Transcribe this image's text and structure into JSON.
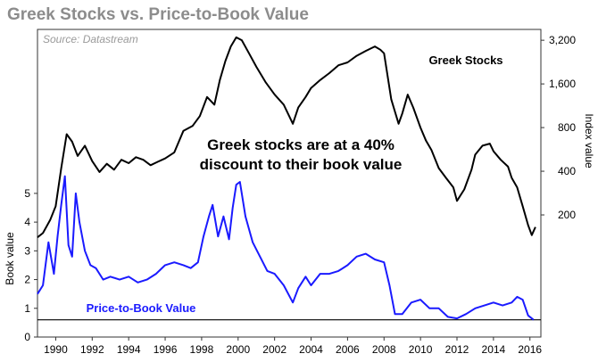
{
  "chart_data": {
    "type": "line",
    "title": "Greek Stocks vs. Price-to-Book Value",
    "source": "Source: Datastream",
    "annotation": [
      "Greek stocks are at a 40%",
      "discount to their book value"
    ],
    "x_ticks": [
      "1990",
      "1992",
      "1994",
      "1996",
      "1998",
      "2000",
      "2002",
      "2004",
      "2006",
      "2008",
      "2010",
      "2012",
      "2014",
      "2016"
    ],
    "xlim": [
      1989,
      2016.6
    ],
    "left_axis": {
      "title": "Book value",
      "ticks": [
        "0",
        "1",
        "2",
        "3",
        "4",
        "5"
      ],
      "range": [
        0,
        6.3
      ]
    },
    "right_axis": {
      "title": "Index value",
      "ticks": [
        "200",
        "400",
        "800",
        "1,600",
        "3,200"
      ],
      "scale": "log",
      "range": [
        100,
        3800
      ]
    },
    "reference_line": {
      "axis": "left",
      "value": 0.6,
      "color": "#000000"
    },
    "series": [
      {
        "name": "Greek Stocks",
        "axis": "right",
        "color": "#000000",
        "x": [
          1989.0,
          1989.3,
          1989.7,
          1990.0,
          1990.3,
          1990.6,
          1990.9,
          1991.2,
          1991.6,
          1992.0,
          1992.4,
          1992.8,
          1993.2,
          1993.6,
          1994.0,
          1994.4,
          1994.8,
          1995.2,
          1995.6,
          1996.0,
          1996.5,
          1997.0,
          1997.5,
          1997.9,
          1998.3,
          1998.7,
          1999.0,
          1999.3,
          1999.6,
          1999.9,
          2000.2,
          2000.6,
          2001.0,
          2001.5,
          2002.0,
          2002.5,
          2003.0,
          2003.3,
          2003.7,
          2004.0,
          2004.5,
          2005.0,
          2005.5,
          2006.0,
          2006.5,
          2007.0,
          2007.5,
          2007.8,
          2008.0,
          2008.4,
          2008.8,
          2009.0,
          2009.3,
          2009.6,
          2010.0,
          2010.3,
          2010.6,
          2011.0,
          2011.4,
          2011.8,
          2012.0,
          2012.4,
          2012.8,
          2013.0,
          2013.4,
          2013.8,
          2014.0,
          2014.4,
          2014.8,
          2015.0,
          2015.3,
          2015.6,
          2015.9,
          2016.1,
          2016.3
        ],
        "y": [
          140,
          150,
          185,
          230,
          420,
          720,
          640,
          510,
          600,
          470,
          395,
          450,
          410,
          480,
          455,
          500,
          480,
          440,
          465,
          490,
          540,
          760,
          820,
          960,
          1300,
          1150,
          1700,
          2300,
          2900,
          3350,
          3200,
          2600,
          2100,
          1650,
          1350,
          1150,
          850,
          1100,
          1300,
          1500,
          1700,
          1900,
          2150,
          2250,
          2500,
          2700,
          2900,
          2750,
          2600,
          1250,
          850,
          1000,
          1350,
          1100,
          800,
          650,
          560,
          420,
          360,
          310,
          250,
          300,
          410,
          520,
          600,
          620,
          550,
          480,
          430,
          360,
          310,
          230,
          170,
          145,
          165
        ]
      },
      {
        "name": "Price-to-Book Value",
        "axis": "left",
        "color": "#1a1aff",
        "x": [
          1989.0,
          1989.3,
          1989.6,
          1989.9,
          1990.1,
          1990.3,
          1990.5,
          1990.7,
          1990.9,
          1991.1,
          1991.3,
          1991.6,
          1991.9,
          1992.2,
          1992.6,
          1993.0,
          1993.5,
          1994.0,
          1994.5,
          1995.0,
          1995.5,
          1996.0,
          1996.5,
          1997.0,
          1997.4,
          1997.8,
          1998.1,
          1998.4,
          1998.6,
          1998.9,
          1999.2,
          1999.5,
          1999.7,
          1999.9,
          2000.1,
          2000.4,
          2000.8,
          2001.2,
          2001.6,
          2002.0,
          2002.5,
          2003.0,
          2003.3,
          2003.7,
          2004.0,
          2004.5,
          2005.0,
          2005.5,
          2006.0,
          2006.5,
          2007.0,
          2007.5,
          2008.0,
          2008.3,
          2008.6,
          2009.0,
          2009.5,
          2010.0,
          2010.5,
          2011.0,
          2011.5,
          2012.0,
          2012.5,
          2013.0,
          2013.5,
          2014.0,
          2014.5,
          2015.0,
          2015.3,
          2015.6,
          2015.9,
          2016.2
        ],
        "y": [
          1.5,
          1.8,
          3.3,
          2.2,
          3.5,
          4.6,
          5.6,
          3.2,
          2.8,
          5.0,
          4.0,
          3.0,
          2.5,
          2.4,
          2.0,
          2.1,
          2.0,
          2.1,
          1.9,
          2.0,
          2.2,
          2.5,
          2.6,
          2.5,
          2.4,
          2.6,
          3.5,
          4.2,
          4.6,
          3.5,
          4.2,
          3.4,
          4.5,
          5.3,
          5.4,
          4.2,
          3.3,
          2.8,
          2.3,
          2.2,
          1.8,
          1.2,
          1.7,
          2.1,
          1.8,
          2.2,
          2.2,
          2.3,
          2.5,
          2.8,
          2.9,
          2.7,
          2.6,
          1.8,
          0.8,
          0.8,
          1.2,
          1.3,
          1.0,
          1.0,
          0.7,
          0.65,
          0.8,
          1.0,
          1.1,
          1.2,
          1.1,
          1.2,
          1.4,
          1.3,
          0.75,
          0.6
        ]
      }
    ]
  }
}
